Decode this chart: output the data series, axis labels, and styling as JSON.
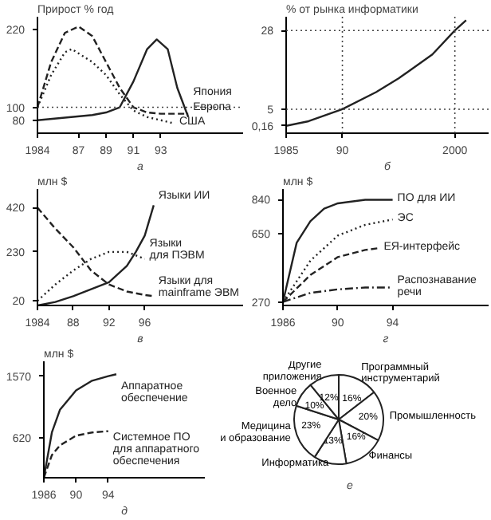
{
  "chart_data": [
    {
      "type": "line",
      "ylabel": "Прирост % год",
      "annotations": [
        "а"
      ],
      "xlim": [
        1984,
        1999
      ],
      "ylim": [
        60,
        240
      ],
      "xticks": [
        1984,
        {
          "value": 1987,
          "label": "87"
        },
        {
          "value": 1989,
          "label": "89"
        },
        {
          "value": 1991,
          "label": "91"
        },
        {
          "value": 1993,
          "label": "93"
        }
      ],
      "yticks": [
        80,
        100,
        220
      ],
      "ref_lines": [
        {
          "axis": "y",
          "value": 100,
          "line_style": "dotted"
        }
      ],
      "series": [
        {
          "name": "Европа",
          "color": "#222222",
          "line_style": "solid",
          "x": [
            1984,
            1986,
            1988,
            1989,
            1990,
            1991,
            1992,
            1992.7,
            1993.5,
            1994.2,
            1995
          ],
          "values": [
            80,
            84,
            88,
            92,
            100,
            140,
            190,
            205,
            190,
            130,
            85
          ]
        },
        {
          "name": "Япония",
          "color": "#222222",
          "line_style": "dashed",
          "x": [
            1984,
            1985,
            1986,
            1987,
            1988,
            1989,
            1990,
            1991,
            1992,
            1993,
            1994,
            1995
          ],
          "values": [
            100,
            170,
            215,
            225,
            210,
            170,
            130,
            100,
            92,
            90,
            90,
            90
          ]
        },
        {
          "name": "США",
          "color": "#222222",
          "line_style": "dotted",
          "x": [
            1984,
            1985,
            1986,
            1986.5,
            1988,
            1989,
            1990,
            1991,
            1992,
            1993,
            1994
          ],
          "values": [
            100,
            150,
            185,
            190,
            170,
            150,
            120,
            95,
            85,
            80,
            75
          ]
        }
      ]
    },
    {
      "type": "line",
      "ylabel": "% от рынка информатики",
      "annotations": [
        "б"
      ],
      "xlim": [
        1985,
        2003
      ],
      "ylim": [
        -2,
        32
      ],
      "xticks": [
        1985,
        {
          "value": 1990,
          "label": "90"
        },
        2000
      ],
      "yticks": [
        {
          "value": 0.16,
          "label": "0,16"
        },
        5,
        28
      ],
      "ref_lines": [
        {
          "axis": "y",
          "value": 5,
          "line_style": "dotted"
        },
        {
          "axis": "y",
          "value": 28,
          "line_style": "dotted"
        },
        {
          "axis": "x",
          "value": 1990,
          "line_style": "dotted"
        },
        {
          "axis": "x",
          "value": 2000,
          "line_style": "dotted"
        }
      ],
      "series": [
        {
          "color": "#222222",
          "line_style": "solid",
          "x": [
            1985,
            1987,
            1990,
            1993,
            1995,
            1998,
            2000,
            2001
          ],
          "values": [
            0.16,
            1.5,
            5,
            10,
            14,
            21,
            28,
            31
          ]
        }
      ]
    },
    {
      "type": "line",
      "ylabel": "млн $",
      "annotations": [
        "в"
      ],
      "xlim": [
        1984,
        2007
      ],
      "ylim": [
        0,
        500
      ],
      "xticks": [
        1984,
        {
          "value": 1988,
          "label": "88"
        },
        {
          "value": 1992,
          "label": "92"
        },
        {
          "value": 1996,
          "label": "96"
        }
      ],
      "yticks": [
        20,
        230,
        420
      ],
      "series": [
        {
          "name": "Языки ИИ",
          "color": "#222222",
          "line_style": "solid",
          "x": [
            1984,
            1986,
            1988,
            1990,
            1992,
            1994,
            1995,
            1996,
            1997
          ],
          "values": [
            0,
            15,
            40,
            70,
            100,
            170,
            230,
            300,
            430
          ]
        },
        {
          "name": "Языки\nдля ПЭВМ",
          "color": "#222222",
          "line_style": "dotted",
          "x": [
            1984,
            1986,
            1988,
            1990,
            1992,
            1994,
            1996
          ],
          "values": [
            20,
            90,
            150,
            200,
            230,
            230,
            200
          ]
        },
        {
          "name": "Языки для\nmainframe ЭВМ",
          "color": "#222222",
          "line_style": "dashed",
          "x": [
            1984,
            1986,
            1988,
            1990,
            1992,
            1994,
            1996,
            1997
          ],
          "values": [
            420,
            330,
            250,
            150,
            90,
            60,
            45,
            40
          ]
        }
      ]
    },
    {
      "type": "line",
      "ylabel": "млн $",
      "annotations": [
        "г"
      ],
      "xlim": [
        1986,
        2001
      ],
      "ylim": [
        250,
        900
      ],
      "xticks": [
        1986,
        {
          "value": 1990,
          "label": "90"
        },
        {
          "value": 1994,
          "label": "94"
        }
      ],
      "yticks": [
        270,
        650,
        840
      ],
      "series": [
        {
          "name": "ПО для ИИ",
          "color": "#222222",
          "line_style": "solid",
          "x": [
            1986,
            1987,
            1988,
            1989,
            1990,
            1992,
            1994
          ],
          "values": [
            270,
            600,
            720,
            790,
            820,
            840,
            840
          ]
        },
        {
          "name": "ЭС",
          "color": "#222222",
          "line_style": "dotted",
          "x": [
            1986,
            1988,
            1990,
            1992,
            1994
          ],
          "values": [
            270,
            500,
            640,
            700,
            730
          ]
        },
        {
          "name": "ЕЯ-интерфейс",
          "color": "#222222",
          "line_style": "dashed",
          "x": [
            1986,
            1988,
            1990,
            1992,
            1993
          ],
          "values": [
            270,
            420,
            520,
            560,
            570
          ]
        },
        {
          "name": "Распознавание\nречи",
          "color": "#222222",
          "line_style": "dashdot",
          "x": [
            1986,
            1988,
            1990,
            1992,
            1994
          ],
          "values": [
            270,
            320,
            340,
            350,
            350
          ]
        }
      ]
    },
    {
      "type": "line",
      "ylabel": "млн $",
      "annotations": [
        "д"
      ],
      "xlim": [
        1986,
        2006
      ],
      "ylim": [
        0,
        1800
      ],
      "xticks": [
        1986,
        {
          "value": 1990,
          "label": "90"
        },
        {
          "value": 1994,
          "label": "94"
        }
      ],
      "yticks": [
        620,
        1570
      ],
      "series": [
        {
          "name": "Аппаратное\nобеспечение",
          "color": "#222222",
          "line_style": "solid",
          "x": [
            1986,
            1987,
            1988,
            1990,
            1992,
            1994,
            1995
          ],
          "values": [
            0,
            700,
            1050,
            1350,
            1500,
            1570,
            1600
          ]
        },
        {
          "name": "Системное ПО\nдля аппаратного\nобеспечения",
          "color": "#222222",
          "line_style": "dashed",
          "x": [
            1986,
            1987,
            1988,
            1990,
            1992,
            1994
          ],
          "values": [
            0,
            350,
            500,
            650,
            700,
            720
          ]
        }
      ]
    },
    {
      "type": "pie",
      "annotations": [
        "е"
      ],
      "categories": [
        "Программный\nинструментарий",
        "Промышленность",
        "Финансы",
        "Информатика",
        "Медицина\nи образование",
        "Военное\nдело",
        "Другие\nприложения"
      ],
      "values": [
        16,
        20,
        16,
        13,
        23,
        10,
        12
      ],
      "value_labels": [
        "16%",
        "20%",
        "16%",
        "13%",
        "23%",
        "10%",
        "12%"
      ],
      "colors": [
        "#ffffff",
        "#ffffff",
        "#ffffff",
        "#ffffff",
        "#ffffff",
        "#ffffff",
        "#ffffff"
      ]
    }
  ]
}
